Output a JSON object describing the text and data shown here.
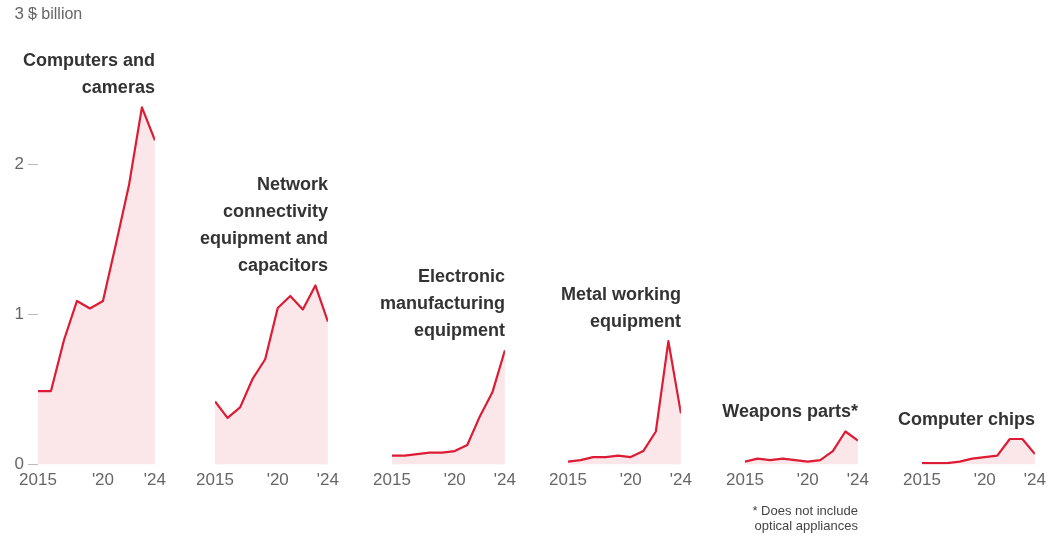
{
  "chart_data": [
    {
      "type": "area",
      "title": "Computers and cameras",
      "ylabel": "$ billion",
      "x": [
        2015,
        2016,
        2017,
        2018,
        2019,
        2020,
        2021,
        2022,
        2023,
        2024
      ],
      "xlim": [
        2015,
        2024
      ],
      "xticks": [
        {
          "value": 2015,
          "label": "2015"
        },
        {
          "value": 2020,
          "label": "'20"
        },
        {
          "value": 2024,
          "label": "'24"
        }
      ],
      "ylim": [
        0,
        3
      ],
      "yticks": [
        0,
        1,
        2,
        3
      ],
      "series": [
        {
          "color": "#dc1c34",
          "values": [
            0.49,
            0.49,
            0.83,
            1.09,
            1.04,
            1.09,
            1.47,
            1.86,
            2.38,
            2.16
          ]
        }
      ]
    },
    {
      "type": "area",
      "title": "Network connectivity equipment and capacitors",
      "x": [
        2015,
        2016,
        2017,
        2018,
        2019,
        2020,
        2021,
        2022,
        2023,
        2024
      ],
      "xlim": [
        2015,
        2024
      ],
      "xticks": [
        {
          "value": 2015,
          "label": "2015"
        },
        {
          "value": 2020,
          "label": "'20"
        },
        {
          "value": 2024,
          "label": "'24"
        }
      ],
      "ylim": [
        0,
        3
      ],
      "tick_labels": "x",
      "series": [
        {
          "color": "#dc1c34",
          "values": [
            0.42,
            0.31,
            0.38,
            0.57,
            0.7,
            1.04,
            1.12,
            1.03,
            1.19,
            0.95
          ]
        }
      ]
    },
    {
      "type": "area",
      "title": "Electronic manufacturing equipment",
      "x": [
        2015,
        2016,
        2017,
        2018,
        2019,
        2020,
        2021,
        2022,
        2023,
        2024
      ],
      "xlim": [
        2015,
        2024
      ],
      "xticks": [
        {
          "value": 2015,
          "label": "2015"
        },
        {
          "value": 2020,
          "label": "'20"
        },
        {
          "value": 2024,
          "label": "'24"
        }
      ],
      "ylim": [
        0,
        3
      ],
      "tick_labels": "x",
      "series": [
        {
          "color": "#dc1c34",
          "values": [
            0.06,
            0.06,
            0.07,
            0.08,
            0.08,
            0.09,
            0.13,
            0.32,
            0.48,
            0.76
          ]
        }
      ]
    },
    {
      "type": "area",
      "title": "Metal working equipment",
      "x": [
        2015,
        2016,
        2017,
        2018,
        2019,
        2020,
        2021,
        2022,
        2023,
        2024
      ],
      "xlim": [
        2015,
        2024
      ],
      "xticks": [
        {
          "value": 2015,
          "label": "2015"
        },
        {
          "value": 2020,
          "label": "'20"
        },
        {
          "value": 2024,
          "label": "'24"
        }
      ],
      "ylim": [
        0,
        3
      ],
      "tick_labels": "x",
      "series": [
        {
          "color": "#dc1c34",
          "values": [
            0.02,
            0.03,
            0.05,
            0.05,
            0.06,
            0.05,
            0.09,
            0.22,
            0.82,
            0.34
          ]
        }
      ]
    },
    {
      "type": "area",
      "title": "Weapons parts*",
      "annotations": [
        "* Does not include optical appliances"
      ],
      "x": [
        2015,
        2016,
        2017,
        2018,
        2019,
        2020,
        2021,
        2022,
        2023,
        2024
      ],
      "xlim": [
        2015,
        2024
      ],
      "xticks": [
        {
          "value": 2015,
          "label": "2015"
        },
        {
          "value": 2020,
          "label": "'20"
        },
        {
          "value": 2024,
          "label": "'24"
        }
      ],
      "ylim": [
        0,
        3
      ],
      "tick_labels": "x",
      "series": [
        {
          "color": "#dc1c34",
          "values": [
            0.02,
            0.04,
            0.03,
            0.04,
            0.03,
            0.02,
            0.03,
            0.09,
            0.22,
            0.16
          ]
        }
      ]
    },
    {
      "type": "area",
      "title": "Computer chips",
      "x": [
        2015,
        2016,
        2017,
        2018,
        2019,
        2020,
        2021,
        2022,
        2023,
        2024
      ],
      "xlim": [
        2015,
        2024
      ],
      "xticks": [
        {
          "value": 2015,
          "label": "2015"
        },
        {
          "value": 2020,
          "label": "'20"
        },
        {
          "value": 2024,
          "label": "'24"
        }
      ],
      "ylim": [
        0,
        3
      ],
      "tick_labels": "x",
      "series": [
        {
          "color": "#dc1c34",
          "values": [
            0.01,
            0.01,
            0.01,
            0.02,
            0.04,
            0.05,
            0.06,
            0.17,
            0.17,
            0.07
          ]
        }
      ]
    }
  ]
}
